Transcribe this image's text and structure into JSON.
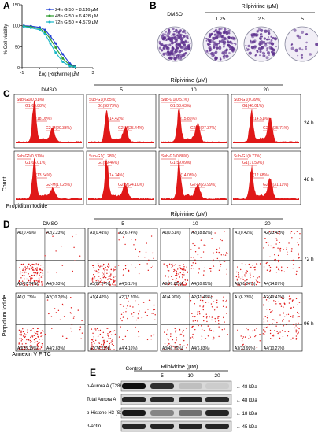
{
  "panels": {
    "A": {
      "letter": "A",
      "ylabel": "% Cell viability",
      "xlabel": "Log [Rilpivirine] μM",
      "yticks": [
        "150",
        "100",
        "50",
        "0"
      ],
      "xticks": [
        "-1",
        "0",
        "1",
        "2",
        "3"
      ],
      "legend": [
        {
          "text": "24h GI50 = 8.116 μM",
          "color": "#1f3fd6"
        },
        {
          "text": "48h GI50 = 6.428 μM",
          "color": "#2e9d2e"
        },
        {
          "text": "72h GI50 = 4.579 μM",
          "color": "#18b7c7"
        }
      ],
      "chart_data": {
        "type": "line",
        "xlabel": "Log [Rilpivirine] μM",
        "ylabel": "% Cell viability",
        "xlim": [
          -1,
          3
        ],
        "ylim": [
          0,
          150
        ],
        "series": [
          {
            "name": "24h GI50 = 8.116 μM",
            "color": "#1f3fd6",
            "x": [
              -0.9,
              -0.5,
              0,
              0.3,
              0.6,
              0.9,
              1.3,
              1.7,
              2.0
            ],
            "y": [
              100,
              99,
              96,
              90,
              75,
              58,
              32,
              10,
              3
            ]
          },
          {
            "name": "48h GI50 = 6.428 μM",
            "color": "#2e9d2e",
            "x": [
              -0.9,
              -0.5,
              0,
              0.3,
              0.6,
              0.9,
              1.3,
              1.7,
              2.0
            ],
            "y": [
              99,
              97,
              93,
              85,
              68,
              48,
              22,
              6,
              2
            ]
          },
          {
            "name": "72h GI50 = 4.579 μM",
            "color": "#18b7c7",
            "x": [
              -0.9,
              -0.5,
              0,
              0.3,
              0.6,
              0.9,
              1.3,
              1.7,
              2.0
            ],
            "y": [
              98,
              95,
              90,
              80,
              58,
              36,
              14,
              4,
              1
            ]
          }
        ]
      }
    },
    "B": {
      "letter": "B",
      "title": "Rilpivirine (μM)",
      "labels": [
        "DMSO",
        "1.25",
        "2.5",
        "5"
      ]
    },
    "C": {
      "letter": "C",
      "title": "Rilpivirine (μM)",
      "columns": [
        "DMSO",
        "5",
        "10",
        "20"
      ],
      "rows": [
        "24 h",
        "48 h"
      ],
      "yaxis": "Count",
      "xaxis": "Propidium Iodide",
      "gates": [
        [
          [
            "Sub-G1(0.31%)",
            "G1(63.88%)",
            "S(18.09%)",
            "G2-M(20.33%)"
          ],
          [
            "Sub-G1(0.85%)",
            "G1(58.73%)",
            "S(14.42%)",
            "G2-M(25.44%)"
          ],
          [
            "Sub-G1(0.51%)",
            "G1(53.63%)",
            "S(15.86%)",
            "G2-M(27.37%)"
          ],
          [
            "Sub-G1(0.39%)",
            "G1(46.01%)",
            "S(14.51%)",
            "G2-M(35.71%)"
          ]
        ],
        [
          [
            "Sub-G1(0.37%)",
            "G1(66.01%)",
            "S(13.54%)",
            "G2-M(17.28%)"
          ],
          [
            "Sub-G1(1.28%)",
            "G1(59.46%)",
            "S(14.34%)",
            "G2-M(24.10%)"
          ],
          [
            "Sub-G1(0.88%)",
            "G1(59.09%)",
            "S(14.03%)",
            "G2-M(23.99%)"
          ],
          [
            "Sub-G1(0.77%)",
            "G1(17.59%)",
            "S(12.68%)",
            "G2-M(31.11%)"
          ]
        ]
      ]
    },
    "D": {
      "letter": "D",
      "title": "Rilpivirine (μM)",
      "columns": [
        "DMSO",
        "5",
        "10",
        "20"
      ],
      "rows": [
        "72 h",
        "96 h"
      ],
      "yaxis": "Propidium Iodide",
      "xaxis": "Annexin V FITC",
      "quadrants": [
        [
          [
            "A1(0.49%)",
            "A2(2.23%)",
            "A3(97.74%)",
            "A4(0.53%)"
          ],
          [
            "A1(0.41%)",
            "A2(6.74%)",
            "A3(87.74%)",
            "A4(5.11%)"
          ],
          [
            "A1(0.51%)",
            "A2(18.82%)",
            "A3(70.02%)",
            "A4(10.61%)"
          ],
          [
            "A1(0.42%)",
            "A2(23.45%)",
            "A3(61.27%)",
            "A4(14.87%)"
          ]
        ],
        [
          [
            "A1(1.73%)",
            "A2(10.20%)",
            "A3(85.15%)",
            "A4(2.83%)"
          ],
          [
            "A1(4.42%)",
            "A2(17.20%)",
            "A3(74.22%)",
            "A4(4.16%)"
          ],
          [
            "A1(4.90%)",
            "A2(41.46%)",
            "A3(46.76%)",
            "A4(6.83%)"
          ],
          [
            "A1(6.33%)",
            "A2(49.41%)",
            "A3(33.99%)",
            "A4(10.27%)"
          ]
        ]
      ]
    },
    "E": {
      "letter": "E",
      "title": "Rilpivirine (μM)",
      "lanes": [
        "Control",
        "5",
        "10",
        "20"
      ],
      "bands": [
        {
          "label": "p-Aurora A (T288)",
          "kda": "48 kDa",
          "intensity": [
            1.0,
            0.85,
            0.18,
            0.12
          ]
        },
        {
          "label": "Total Aurora A",
          "kda": "48 kDa",
          "intensity": [
            0.9,
            0.88,
            0.9,
            0.87
          ]
        },
        {
          "label": "p-Histone H3 (S10)",
          "kda": "18 kDa",
          "intensity": [
            0.95,
            0.45,
            0.55,
            0.9
          ]
        },
        {
          "label": "β-actin",
          "kda": "45 kDa",
          "intensity": [
            0.9,
            0.9,
            0.9,
            0.9
          ]
        }
      ]
    }
  }
}
